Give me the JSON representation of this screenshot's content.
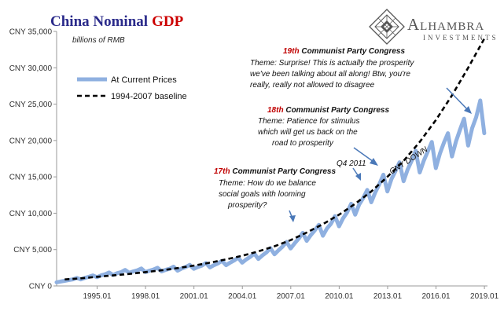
{
  "title": {
    "part1": "China Nominal",
    "part2": "GDP",
    "color1": "#2a2a8a",
    "color2": "#cc0000"
  },
  "units_note": "billions of RMB",
  "brand": {
    "name": "Alhambra",
    "sub": "INVESTMENTS",
    "color": "#555555",
    "icon": "diamond-lattice-logo"
  },
  "legend": [
    {
      "label": "At Current Prices",
      "color": "#8fb0e0",
      "style": "solid"
    },
    {
      "label": "1994-2007 baseline",
      "color": "#000000",
      "style": "dashed"
    }
  ],
  "y_ticks": [
    "CNY 0",
    "CNY 5,000",
    "CNY 10,000",
    "CNY 15,000",
    "CNY 20,000",
    "CNY 25,000",
    "CNY 30,000",
    "CNY 35,000"
  ],
  "x_ticks": [
    "1995.01",
    "1998.01",
    "2001.01",
    "2004.01",
    "2007.01",
    "2010.01",
    "2013.01",
    "2016.01",
    "2019.01"
  ],
  "annotations": {
    "c19": {
      "num": "19th",
      "head": " Communist Party Congress",
      "lines": [
        "Theme: Surprise! This is actually the prosperity",
        "we've been talking about all along! Btw, you're",
        "really, really not allowed to disagree"
      ]
    },
    "c18": {
      "num": "18th",
      "head": " Communist Party Congress",
      "lines": [
        "Theme: Patience for stimulus",
        "which will get us back on the",
        "road to prosperity"
      ]
    },
    "c17": {
      "num": "17th",
      "head": " Communist Party Congress",
      "lines": [
        "Theme: How do we balance",
        "social goals with looming",
        "prosperity?"
      ]
    },
    "q4": "Q4 2011",
    "cny_down": "CNY DOWN"
  },
  "chart_data": {
    "type": "line",
    "title": "China Nominal GDP",
    "ylabel": "billions of RMB",
    "xlabel": "",
    "xlim": [
      1992.5,
      2019.2
    ],
    "ylim": [
      0,
      35000
    ],
    "grid": false,
    "legend_position": "top-left",
    "series": [
      {
        "name": "At Current Prices",
        "x": [
          1992.5,
          1992.75,
          1993.0,
          1993.25,
          1993.5,
          1993.75,
          1994.0,
          1994.25,
          1994.5,
          1994.75,
          1995.0,
          1995.25,
          1995.5,
          1995.75,
          1996.0,
          1996.25,
          1996.5,
          1996.75,
          1997.0,
          1997.25,
          1997.5,
          1997.75,
          1998.0,
          1998.25,
          1998.5,
          1998.75,
          1999.0,
          1999.25,
          1999.5,
          1999.75,
          2000.0,
          2000.25,
          2000.5,
          2000.75,
          2001.0,
          2001.25,
          2001.5,
          2001.75,
          2002.0,
          2002.25,
          2002.5,
          2002.75,
          2003.0,
          2003.25,
          2003.5,
          2003.75,
          2004.0,
          2004.25,
          2004.5,
          2004.75,
          2005.0,
          2005.25,
          2005.5,
          2005.75,
          2006.0,
          2006.25,
          2006.5,
          2006.75,
          2007.0,
          2007.25,
          2007.5,
          2007.75,
          2008.0,
          2008.25,
          2008.5,
          2008.75,
          2009.0,
          2009.25,
          2009.5,
          2009.75,
          2010.0,
          2010.25,
          2010.5,
          2010.75,
          2011.0,
          2011.25,
          2011.5,
          2011.75,
          2012.0,
          2012.25,
          2012.5,
          2012.75,
          2013.0,
          2013.25,
          2013.5,
          2013.75,
          2014.0,
          2014.25,
          2014.5,
          2014.75,
          2015.0,
          2015.25,
          2015.5,
          2015.75,
          2016.0,
          2016.25,
          2016.5,
          2016.75,
          2017.0,
          2017.25,
          2017.5,
          2017.75,
          2018.0,
          2018.25,
          2018.5,
          2018.75,
          2019.0
        ],
        "values": [
          500,
          600,
          700,
          800,
          900,
          1100,
          900,
          1100,
          1250,
          1450,
          1200,
          1450,
          1600,
          1850,
          1500,
          1750,
          1900,
          2200,
          1800,
          2000,
          2150,
          2400,
          1900,
          2100,
          2250,
          2500,
          2000,
          2200,
          2350,
          2650,
          2100,
          2400,
          2600,
          2900,
          2350,
          2600,
          2800,
          3150,
          2550,
          2850,
          3100,
          3450,
          2850,
          3200,
          3500,
          3900,
          3200,
          3650,
          4000,
          4450,
          3700,
          4200,
          4600,
          5200,
          4350,
          4900,
          5400,
          6050,
          5150,
          5850,
          6500,
          7300,
          6200,
          7000,
          7650,
          8400,
          6900,
          7900,
          8550,
          9600,
          8200,
          9300,
          10100,
          11300,
          9800,
          11200,
          12100,
          13200,
          11500,
          12900,
          14000,
          15300,
          13000,
          14700,
          15800,
          17000,
          14400,
          16000,
          17200,
          18600,
          15600,
          17200,
          18500,
          19800,
          16200,
          18200,
          19700,
          21000,
          17800,
          19900,
          21500,
          23000,
          19300,
          21700,
          23200,
          25500,
          21000
        ]
      },
      {
        "name": "1994-2007 baseline",
        "x": [
          1993.0,
          1994.0,
          1995.0,
          1996.0,
          1997.0,
          1998.0,
          1999.0,
          2000.0,
          2001.0,
          2002.0,
          2003.0,
          2004.0,
          2005.0,
          2006.0,
          2007.0,
          2008.0,
          2009.0,
          2010.0,
          2011.0,
          2012.0,
          2013.0,
          2014.0,
          2015.0,
          2016.0,
          2017.0,
          2018.0,
          2019.0
        ],
        "values": [
          900,
          1050,
          1250,
          1450,
          1650,
          1900,
          2150,
          2450,
          2800,
          3200,
          3650,
          4150,
          4750,
          5450,
          6300,
          7350,
          8500,
          9800,
          11300,
          13000,
          15000,
          17200,
          19800,
          22800,
          26200,
          30000,
          34000
        ]
      }
    ]
  }
}
